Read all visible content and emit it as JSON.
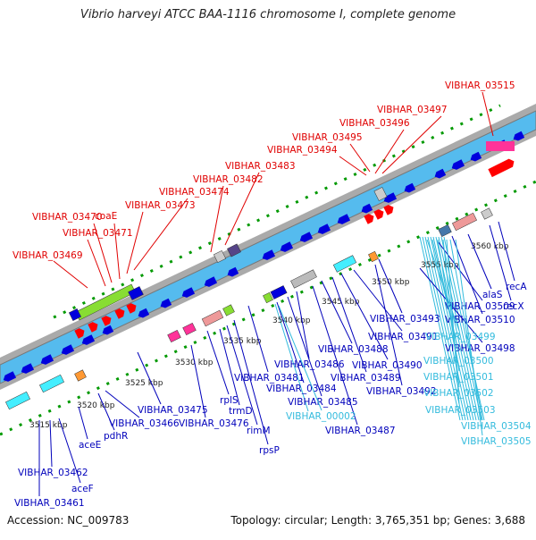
{
  "title": "Vibrio harveyi ATCC BAA-1116 chromosome I, complete genome",
  "accession": "Accession: NC_009783",
  "summary": "Topology: circular; Length: 3,765,351 bp; Genes: 3,688",
  "colors": {
    "red_label": "#e00000",
    "blue_label": "#0000bb",
    "cyan_label": "#33bbdd",
    "track_fill": "#55bbee",
    "gene_blue": "#0000dd",
    "gene_cyan": "#44eeff",
    "gene_red": "#ff0000",
    "gene_pink": "#ff3399",
    "gene_green": "#88dd33",
    "gene_gray": "#999999",
    "dot_green": "#009900"
  },
  "scale_labels": [
    "3515 kbp",
    "3520 kbp",
    "3525 kbp",
    "3530 kbp",
    "3535 kbp",
    "3540 kbp",
    "3545 kbp",
    "3550 kbp",
    "3555 kbp",
    "3560 kbp"
  ],
  "red_labels": [
    "VIBHAR_03469",
    "VIBHAR_03471",
    "VIBHAR_03470",
    "coaE",
    "VIBHAR_03473",
    "VIBHAR_03474",
    "VIBHAR_03482",
    "VIBHAR_03483",
    "VIBHAR_03494",
    "VIBHAR_03495",
    "VIBHAR_03496",
    "VIBHAR_03497",
    "VIBHAR_03515"
  ],
  "blue_labels": [
    "VIBHAR_03461",
    "aceF",
    "VIBHAR_03462",
    "aceE",
    "pdhR",
    "VIBHAR_03466",
    "VIBHAR_03475",
    "VIBHAR_03476",
    "rplS",
    "trmD",
    "rimM",
    "rpsP",
    "VIBHAR_03481",
    "VIBHAR_03484",
    "VIBHAR_03485",
    "VIBHAR_03486",
    "VIBHAR_03487",
    "VIBHAR_03488",
    "VIBHAR_03489",
    "VIBHAR_03490",
    "VIBHAR_03491",
    "VIBHAR_03492",
    "VIBHAR_03493",
    "VIBHAR_03498",
    "VIBHAR_03509",
    "VIBHAR_03510",
    "alaS",
    "recX",
    "recA"
  ],
  "cyan_labels": [
    "VIBHAR_00002",
    "VIBHAR_03499",
    "VIBHAR_03500",
    "VIBHAR_03501",
    "VIBHAR_03502",
    "VIBHAR_03503",
    "VIBHAR_03504",
    "VIBHAR_03505"
  ]
}
